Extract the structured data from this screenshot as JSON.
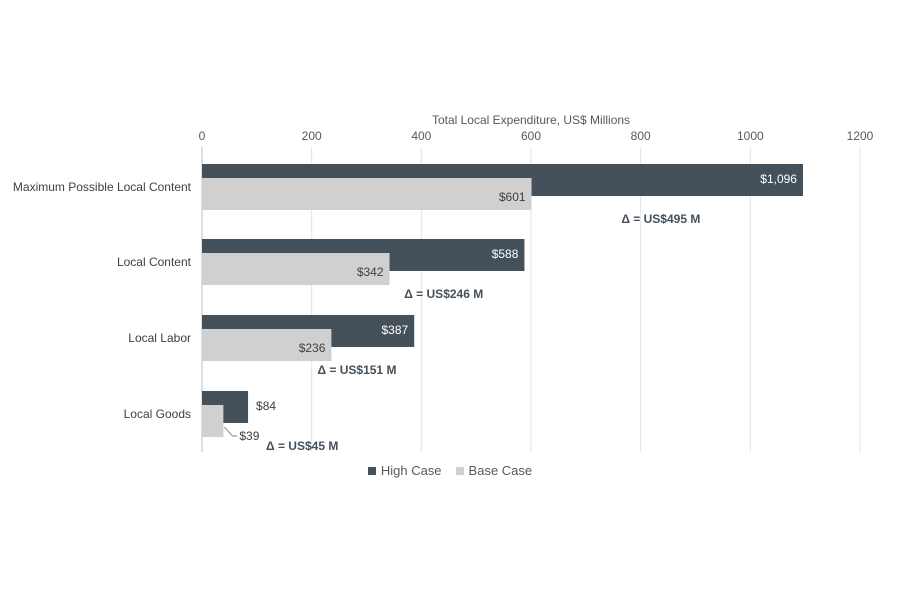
{
  "chart_data": {
    "type": "bar",
    "orientation": "horizontal",
    "xlabel": "Total Local Expenditure, US$ Millions",
    "xlim": [
      0,
      1200
    ],
    "xticks": [
      0,
      200,
      400,
      600,
      800,
      1000,
      1200
    ],
    "xtick_labels": [
      "0",
      "200",
      "400",
      "600",
      "800",
      "1000",
      "1200"
    ],
    "axis_position": "top",
    "grid": true,
    "legend_position": "bottom-center",
    "categories": [
      "Maximum Possible Local Content",
      "Local Content",
      "Local Labor",
      "Local Goods"
    ],
    "series": [
      {
        "name": "High Case",
        "color": "#44505a",
        "values": [
          1096,
          588,
          387,
          84
        ],
        "labels": [
          "$1,096",
          "$588",
          "$387",
          "$84"
        ]
      },
      {
        "name": "Base Case",
        "color": "#d0d0d0",
        "values": [
          601,
          342,
          236,
          39
        ],
        "labels": [
          "$601",
          "$342",
          "$236",
          "$39"
        ]
      }
    ],
    "annotations": [
      "Δ = US$495 M",
      "Δ = US$246 M",
      "Δ = US$151 M",
      "Δ = US$45 M"
    ]
  }
}
